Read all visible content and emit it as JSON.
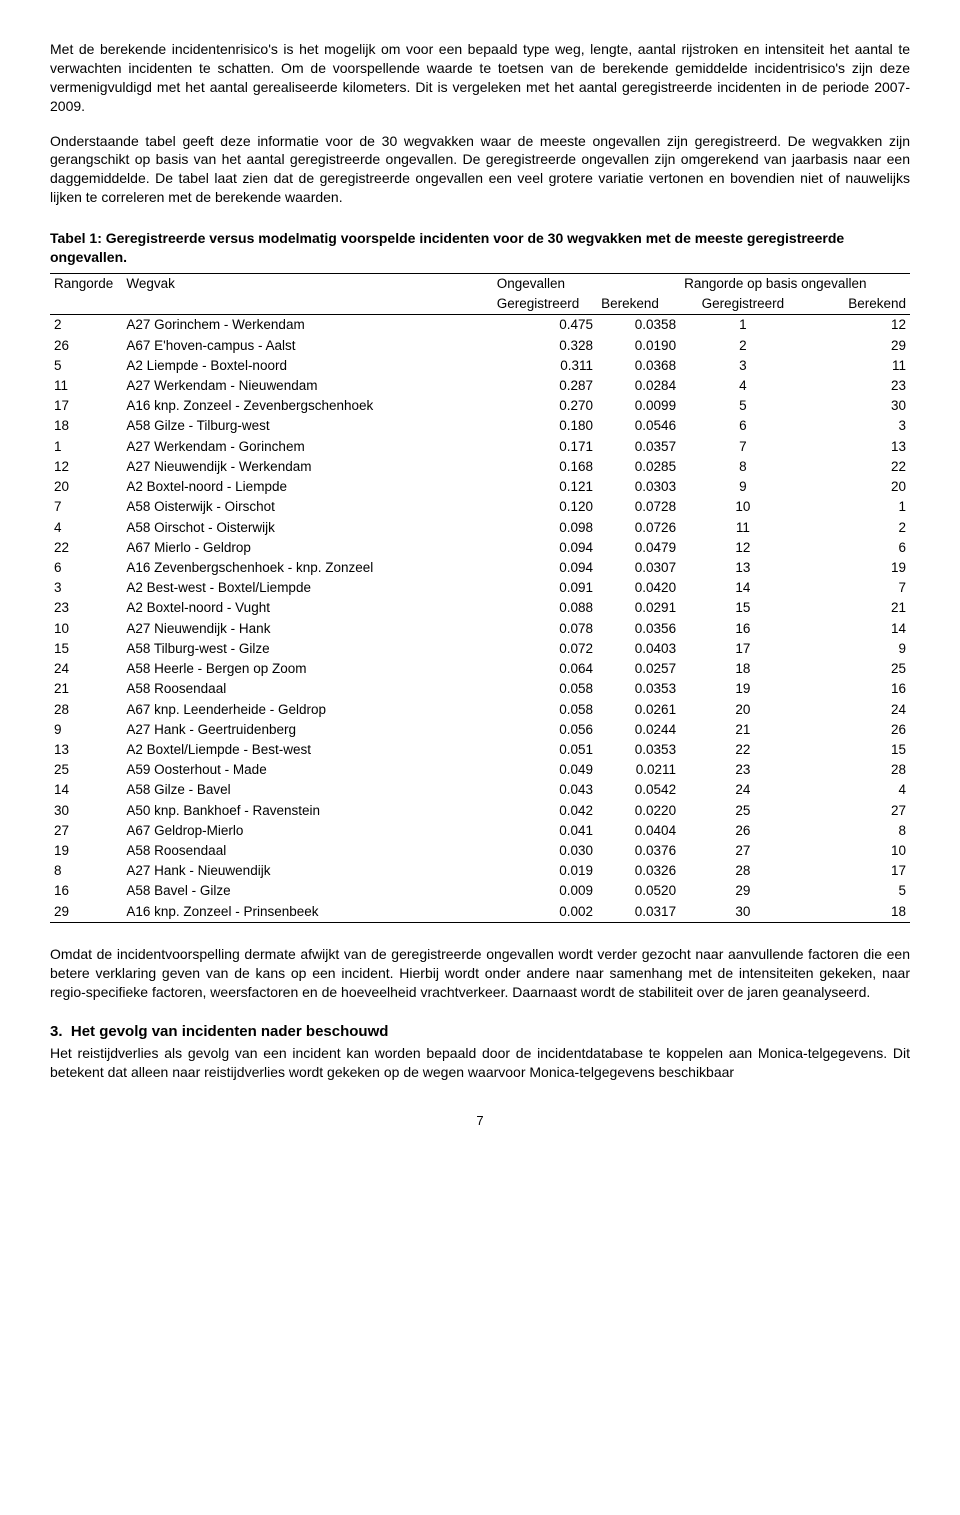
{
  "paragraphs": {
    "p1": "Met de berekende incidentenrisico's is het mogelijk om voor een bepaald type weg, lengte, aantal rijstroken en intensiteit het aantal te verwachten incidenten te schatten. Om de voorspellende waarde te toetsen van de berekende gemiddelde incidentrisico's zijn deze vermenigvuldigd met het aantal gerealiseerde kilometers. Dit is vergeleken met het aantal geregistreerde incidenten in de periode 2007-2009.",
    "p2": "Onderstaande tabel geeft deze informatie voor de 30 wegvakken waar de meeste ongevallen zijn geregistreerd. De wegvakken zijn gerangschikt op basis van het aantal geregistreerde ongevallen. De geregistreerde ongevallen zijn omgerekend van jaarbasis naar een daggemiddelde. De tabel laat zien dat de geregistreerde ongevallen een veel grotere variatie vertonen en bovendien niet of nauwelijks lijken te correleren met de berekende waarden.",
    "p3": "Omdat de incidentvoorspelling dermate afwijkt van de geregistreerde ongevallen wordt verder gezocht naar aanvullende factoren die een betere verklaring geven van de kans op een incident. Hierbij wordt onder andere naar samenhang met de intensiteiten gekeken, naar regio-specifieke factoren, weersfactoren en de hoeveelheid vrachtverkeer. Daarnaast wordt de stabiliteit over de jaren geanalyseerd.",
    "p4": "Het reistijdverlies als gevolg van een incident kan worden bepaald door de incidentdatabase te koppelen aan Monica-telgegevens. Dit betekent dat alleen naar reistijdverlies wordt gekeken op de wegen waarvoor Monica-telgegevens beschikbaar"
  },
  "caption": "Tabel 1: Geregistreerde versus modelmatig voorspelde incidenten voor de 30 wegvakken met de meeste geregistreerde ongevallen.",
  "headers": {
    "rangorde": "Rangorde",
    "wegvak": "Wegvak",
    "ongevallen": "Ongevallen",
    "rang_basis": "Rangorde op basis ongevallen",
    "geregistreerd": "Geregistreerd",
    "berekend": "Berekend",
    "geregistreerd2": "Geregistreerd",
    "berekend2": "Berekend"
  },
  "rows": [
    {
      "r": "2",
      "w": "A27 Gorinchem - Werkendam",
      "g": "0.475",
      "b": "0.0358",
      "rg": "1",
      "rb": "12"
    },
    {
      "r": "26",
      "w": "A67 E'hoven-campus - Aalst",
      "g": "0.328",
      "b": "0.0190",
      "rg": "2",
      "rb": "29"
    },
    {
      "r": "5",
      "w": "A2 Liempde - Boxtel-noord",
      "g": "0.311",
      "b": "0.0368",
      "rg": "3",
      "rb": "11"
    },
    {
      "r": "11",
      "w": "A27 Werkendam - Nieuwendam",
      "g": "0.287",
      "b": "0.0284",
      "rg": "4",
      "rb": "23"
    },
    {
      "r": "17",
      "w": "A16 knp. Zonzeel - Zevenbergschenhoek",
      "g": "0.270",
      "b": "0.0099",
      "rg": "5",
      "rb": "30"
    },
    {
      "r": "18",
      "w": "A58 Gilze - Tilburg-west",
      "g": "0.180",
      "b": "0.0546",
      "rg": "6",
      "rb": "3"
    },
    {
      "r": "1",
      "w": "A27 Werkendam - Gorinchem",
      "g": "0.171",
      "b": "0.0357",
      "rg": "7",
      "rb": "13"
    },
    {
      "r": "12",
      "w": "A27 Nieuwendijk - Werkendam",
      "g": "0.168",
      "b": "0.0285",
      "rg": "8",
      "rb": "22"
    },
    {
      "r": "20",
      "w": "A2 Boxtel-noord - Liempde",
      "g": "0.121",
      "b": "0.0303",
      "rg": "9",
      "rb": "20"
    },
    {
      "r": "7",
      "w": "A58 Oisterwijk - Oirschot",
      "g": "0.120",
      "b": "0.0728",
      "rg": "10",
      "rb": "1"
    },
    {
      "r": "4",
      "w": "A58 Oirschot - Oisterwijk",
      "g": "0.098",
      "b": "0.0726",
      "rg": "11",
      "rb": "2"
    },
    {
      "r": "22",
      "w": "A67 Mierlo - Geldrop",
      "g": "0.094",
      "b": "0.0479",
      "rg": "12",
      "rb": "6"
    },
    {
      "r": "6",
      "w": "A16 Zevenbergschenhoek - knp. Zonzeel",
      "g": "0.094",
      "b": "0.0307",
      "rg": "13",
      "rb": "19"
    },
    {
      "r": "3",
      "w": "A2 Best-west - Boxtel/Liempde",
      "g": "0.091",
      "b": "0.0420",
      "rg": "14",
      "rb": "7"
    },
    {
      "r": "23",
      "w": "A2 Boxtel-noord - Vught",
      "g": "0.088",
      "b": "0.0291",
      "rg": "15",
      "rb": "21"
    },
    {
      "r": "10",
      "w": "A27 Nieuwendijk - Hank",
      "g": "0.078",
      "b": "0.0356",
      "rg": "16",
      "rb": "14"
    },
    {
      "r": "15",
      "w": "A58 Tilburg-west - Gilze",
      "g": "0.072",
      "b": "0.0403",
      "rg": "17",
      "rb": "9"
    },
    {
      "r": "24",
      "w": "A58 Heerle - Bergen op Zoom",
      "g": "0.064",
      "b": "0.0257",
      "rg": "18",
      "rb": "25"
    },
    {
      "r": "21",
      "w": "A58 Roosendaal",
      "g": "0.058",
      "b": "0.0353",
      "rg": "19",
      "rb": "16"
    },
    {
      "r": "28",
      "w": "A67 knp. Leenderheide - Geldrop",
      "g": "0.058",
      "b": "0.0261",
      "rg": "20",
      "rb": "24"
    },
    {
      "r": "9",
      "w": "A27 Hank - Geertruidenberg",
      "g": "0.056",
      "b": "0.0244",
      "rg": "21",
      "rb": "26"
    },
    {
      "r": "13",
      "w": "A2 Boxtel/Liempde - Best-west",
      "g": "0.051",
      "b": "0.0353",
      "rg": "22",
      "rb": "15"
    },
    {
      "r": "25",
      "w": "A59 Oosterhout - Made",
      "g": "0.049",
      "b": "0.0211",
      "rg": "23",
      "rb": "28"
    },
    {
      "r": "14",
      "w": "A58 Gilze - Bavel",
      "g": "0.043",
      "b": "0.0542",
      "rg": "24",
      "rb": "4"
    },
    {
      "r": "30",
      "w": "A50 knp. Bankhoef - Ravenstein",
      "g": "0.042",
      "b": "0.0220",
      "rg": "25",
      "rb": "27"
    },
    {
      "r": "27",
      "w": "A67 Geldrop-Mierlo",
      "g": "0.041",
      "b": "0.0404",
      "rg": "26",
      "rb": "8"
    },
    {
      "r": "19",
      "w": "A58 Roosendaal",
      "g": "0.030",
      "b": "0.0376",
      "rg": "27",
      "rb": "10"
    },
    {
      "r": "8",
      "w": "A27 Hank - Nieuwendijk",
      "g": "0.019",
      "b": "0.0326",
      "rg": "28",
      "rb": "17"
    },
    {
      "r": "16",
      "w": "A58 Bavel - Gilze",
      "g": "0.009",
      "b": "0.0520",
      "rg": "29",
      "rb": "5"
    },
    {
      "r": "29",
      "w": "A16 knp. Zonzeel - Prinsenbeek",
      "g": "0.002",
      "b": "0.0317",
      "rg": "30",
      "rb": "18"
    }
  ],
  "section": {
    "num": "3.",
    "title": "Het gevolg van incidenten nader beschouwd"
  },
  "pagenum": "7"
}
